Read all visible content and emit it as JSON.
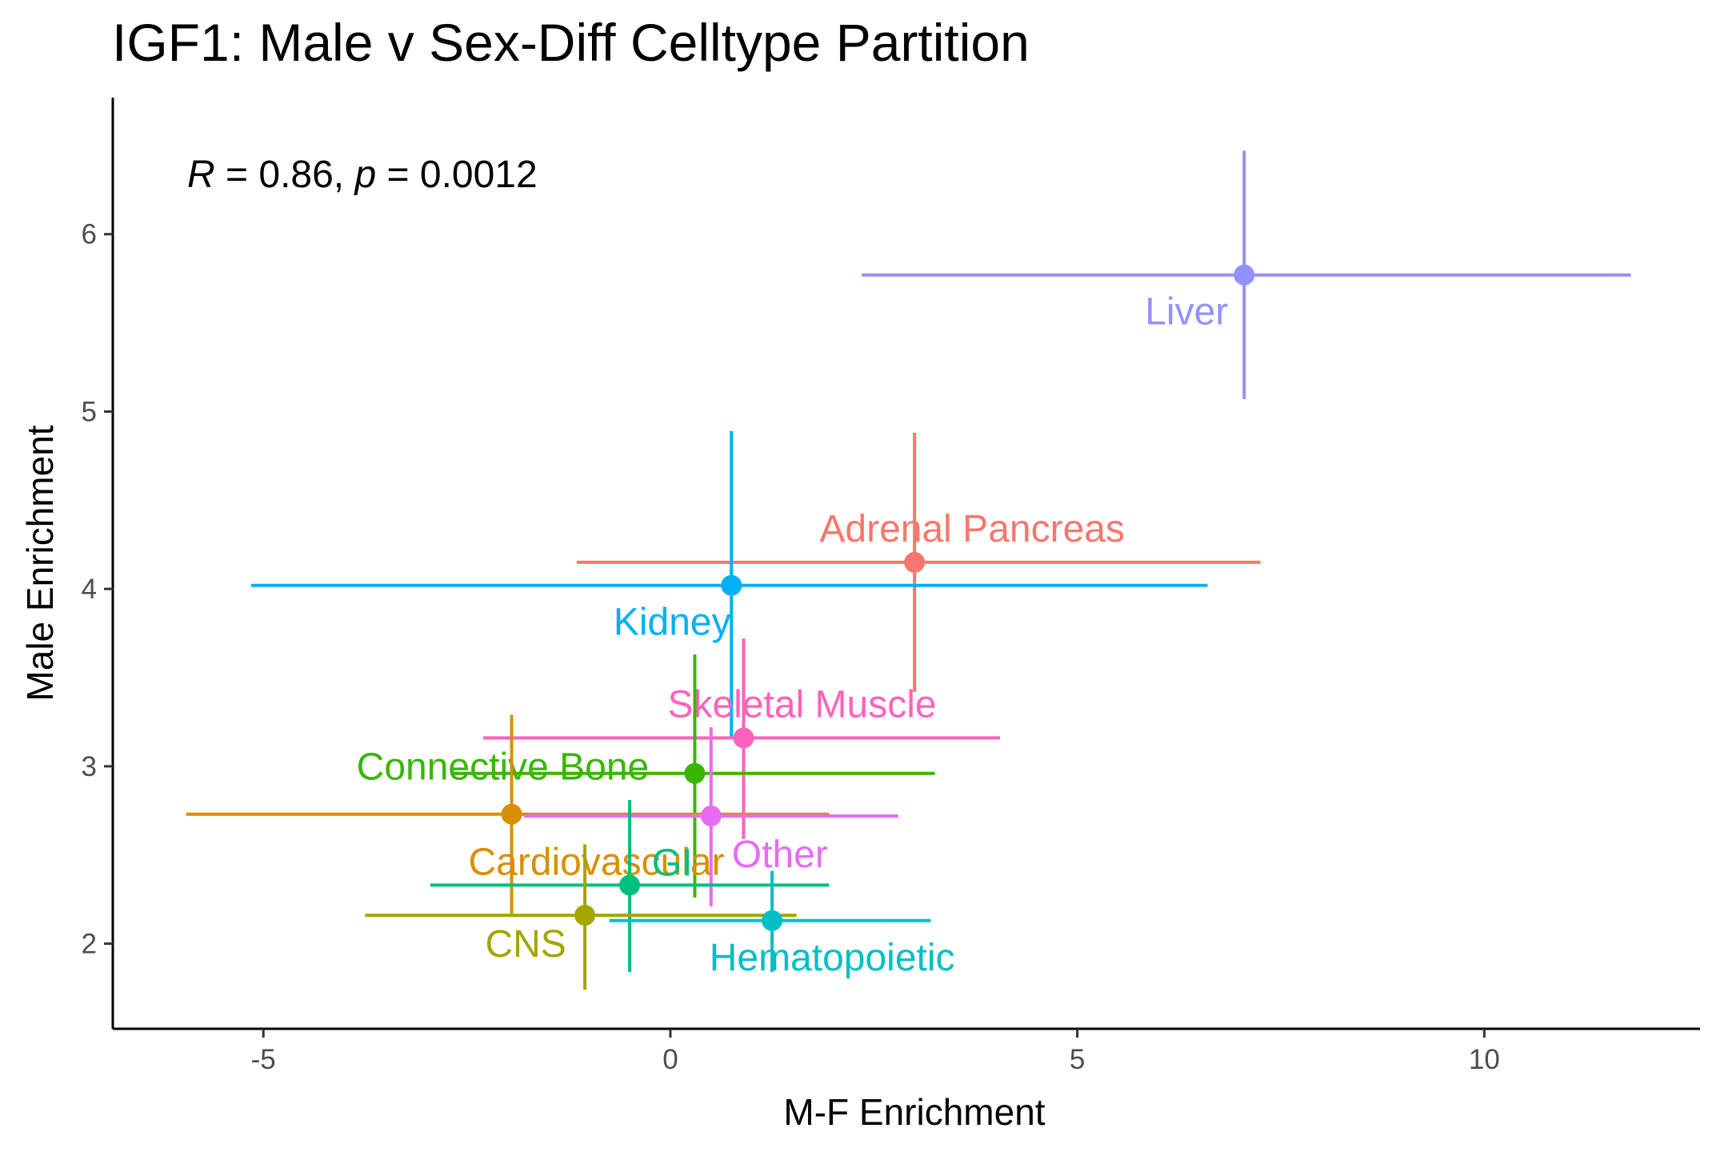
{
  "chart_data": {
    "type": "scatter",
    "title": "IGF1: Male v Sex-Diff Celltype Partition",
    "xlabel": "M-F Enrichment",
    "ylabel": "Male Enrichment",
    "xlim": [
      -6.85,
      12.65
    ],
    "ylim": [
      1.52,
      6.77
    ],
    "x_ticks": [
      -5,
      0,
      5,
      10
    ],
    "x_tick_labels": [
      "-5",
      "0",
      "5",
      "10"
    ],
    "y_ticks": [
      2,
      3,
      4,
      5,
      6
    ],
    "y_tick_labels": [
      "2",
      "3",
      "4",
      "5",
      "6"
    ],
    "grid": false,
    "legend": "none",
    "annotation": {
      "r_symbol": "R",
      "r_text": " = 0.86, ",
      "p_symbol": "p",
      "p_text": " = 0.0012"
    },
    "points": [
      {
        "label": "Liver",
        "x": 7.05,
        "y": 5.77,
        "xmin": 2.35,
        "xmax": 11.8,
        "ymin": 5.07,
        "ymax": 6.47,
        "color": "#9590FF"
      },
      {
        "label": "Adrenal Pancreas",
        "x": 3.0,
        "y": 4.15,
        "xmin": -1.15,
        "xmax": 7.25,
        "ymin": 3.42,
        "ymax": 4.88,
        "color": "#F8766D"
      },
      {
        "label": "Kidney",
        "x": 0.75,
        "y": 4.02,
        "xmin": -5.15,
        "xmax": 6.6,
        "ymin": 3.15,
        "ymax": 4.89,
        "color": "#00B0F6"
      },
      {
        "label": "Skeletal Muscle",
        "x": 0.9,
        "y": 3.16,
        "xmin": -2.3,
        "xmax": 4.05,
        "ymin": 2.59,
        "ymax": 3.72,
        "color": "#FF62BC"
      },
      {
        "label": "Connective Bone",
        "x": 0.3,
        "y": 2.96,
        "xmin": -2.7,
        "xmax": 3.25,
        "ymin": 2.26,
        "ymax": 3.63,
        "color": "#39B600"
      },
      {
        "label": "Cardiovascular",
        "x": -1.95,
        "y": 2.73,
        "xmin": -5.95,
        "xmax": 1.95,
        "ymin": 2.16,
        "ymax": 3.29,
        "color": "#D89000"
      },
      {
        "label": "Other",
        "x": 0.5,
        "y": 2.72,
        "xmin": -1.8,
        "xmax": 2.8,
        "ymin": 2.21,
        "ymax": 3.22,
        "color": "#E76BF3"
      },
      {
        "label": "GI",
        "x": -0.5,
        "y": 2.33,
        "xmin": -2.95,
        "xmax": 1.95,
        "ymin": 1.84,
        "ymax": 2.81,
        "color": "#00BF7D"
      },
      {
        "label": "CNS",
        "x": -1.05,
        "y": 2.16,
        "xmin": -3.75,
        "xmax": 1.55,
        "ymin": 1.74,
        "ymax": 2.56,
        "color": "#A3A500"
      },
      {
        "label": "Hematopoietic",
        "x": 1.25,
        "y": 2.13,
        "xmin": -0.75,
        "xmax": 3.2,
        "ymin": 1.84,
        "ymax": 2.41,
        "color": "#00BFC4"
      }
    ]
  }
}
